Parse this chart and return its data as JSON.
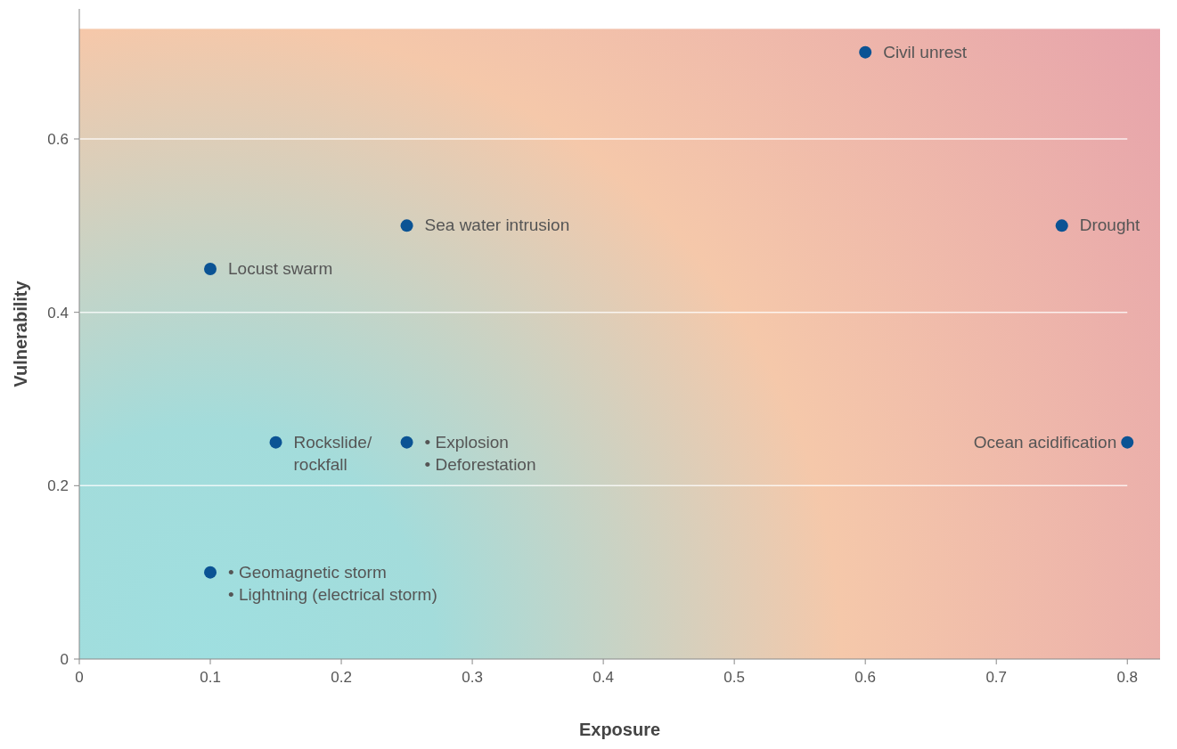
{
  "chart_data": {
    "type": "scatter",
    "xlabel": "Exposure",
    "ylabel": "Vulnerability",
    "x": [
      0.6,
      0.75,
      0.25,
      0.1,
      0.15,
      0.25,
      0.8,
      0.1
    ],
    "series": [
      {
        "color": "#0b5394",
        "values": [
          0.7,
          0.5,
          0.5,
          0.45,
          0.25,
          0.25,
          0.25,
          0.1
        ]
      }
    ],
    "xlim": [
      0,
      0.825
    ],
    "ylim": [
      0,
      0.75
    ],
    "xticks": [
      0,
      0.1,
      0.2,
      0.3,
      0.4,
      0.5,
      0.6,
      0.7,
      0.8
    ],
    "yticks": [
      0,
      0.2,
      0.4,
      0.6
    ],
    "grid": "y",
    "marker": "circle",
    "annotations": [
      {
        "text": "Civil unrest",
        "x": 0.6,
        "y": 0.7
      },
      {
        "text": "Drought",
        "x": 0.75,
        "y": 0.5
      },
      {
        "text": "Sea water intrusion",
        "x": 0.25,
        "y": 0.5
      },
      {
        "text": "Locust swarm",
        "x": 0.1,
        "y": 0.45
      },
      {
        "text": "Rockslide/\nrockfall",
        "x": 0.15,
        "y": 0.25
      },
      {
        "text": "• Explosion\n• Deforestation",
        "x": 0.25,
        "y": 0.25
      },
      {
        "text": "Ocean acidification",
        "x": 0.8,
        "y": 0.25
      },
      {
        "text": "• Geomagnetic storm\n• Lightning (electrical storm)",
        "x": 0.1,
        "y": 0.1
      }
    ]
  }
}
